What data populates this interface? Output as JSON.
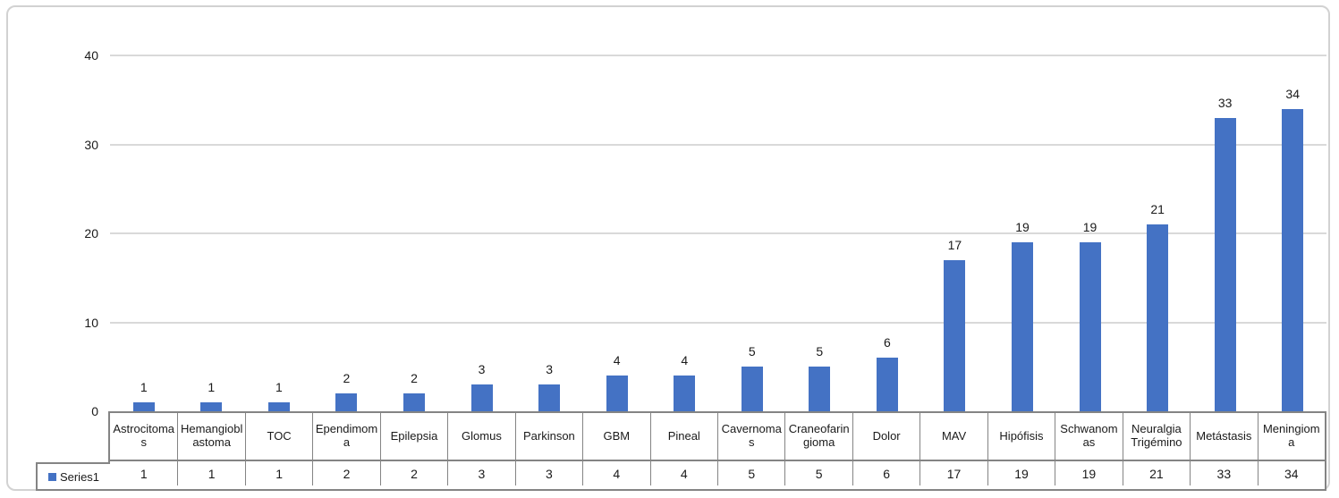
{
  "chart_data": {
    "type": "bar",
    "title": "",
    "categories": [
      "Astrocitomas",
      "Hemangioblastoma",
      "TOC",
      "Ependimoma",
      "Epilepsia",
      "Glomus",
      "Parkinson",
      "GBM",
      "Pineal",
      "Cavernomas",
      "Craneofaringioma",
      "Dolor",
      "MAV",
      "Hipófisis",
      "Schwanomas",
      "Neuralgia Trigémino",
      "Metástasis",
      "Meningioma"
    ],
    "series": [
      {
        "name": "Series1",
        "values": [
          1,
          1,
          1,
          2,
          2,
          3,
          3,
          4,
          4,
          5,
          5,
          6,
          17,
          19,
          19,
          21,
          33,
          34
        ]
      }
    ],
    "y_ticks": [
      0,
      10,
      20,
      30,
      40
    ],
    "ylim": [
      0,
      40
    ],
    "grid": true,
    "data_labels": true,
    "legend_position": "bottom-left-data-table",
    "colors": {
      "bar": "#4472C4",
      "gridline": "#d9d9d9",
      "table_border": "#848484",
      "text": "#1a1a1a",
      "frame_border": "#d2d2d2"
    }
  }
}
